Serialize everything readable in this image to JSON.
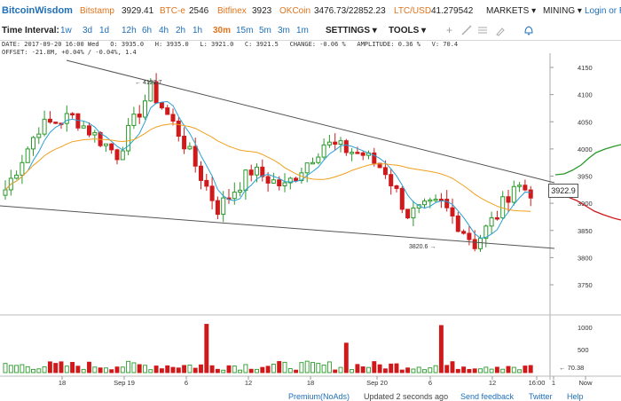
{
  "topbar": {
    "logo": "BitcoinWisdom",
    "tickers": [
      {
        "exchange": "Bitstamp",
        "value": "3929.41"
      },
      {
        "exchange": "BTC-e",
        "value": "2546"
      },
      {
        "exchange": "Bitfinex",
        "value": "3923"
      },
      {
        "exchange": "OKCoin",
        "value": "3476.73/22852.23"
      },
      {
        "exchange": "LTC/USD",
        "value": "41.279542"
      }
    ],
    "markets_label": "MARKETS ▾",
    "mining_label": "MINING ▾",
    "login_label": "Login or R"
  },
  "toolbar": {
    "time_interval_label": "Time Interval:",
    "intervals": [
      "1w",
      "3d",
      "1d",
      "12h",
      "6h",
      "4h",
      "2h",
      "1h",
      "30m",
      "15m",
      "5m",
      "3m",
      "1m"
    ],
    "active_interval": "30m",
    "settings_label": "SETTINGS ▾",
    "tools_label": "TOOLS ▾",
    "icons": [
      "plus-icon",
      "line-icon",
      "hlines-icon",
      "brush-icon",
      "bell-icon"
    ]
  },
  "info": {
    "line1": "DATE: 2017-09-20 16:00 Wed   O: 3935.0   H: 3935.0   L: 3921.0   C: 3921.5   CHANGE: -0.06 %   AMPLITUDE: 0.36 %   V: 70.4",
    "line2": "OFFSET: -21.8M, +0.04% / -0.04%, 1.4"
  },
  "chart_data": {
    "type": "candlestick",
    "ylim": [
      3720,
      4170
    ],
    "yticks": [
      3750,
      3800,
      3850,
      3900,
      3950,
      4000,
      4050,
      4100,
      4150
    ],
    "xtick_labels": [
      "18",
      "Sep 19",
      "6",
      "12",
      "18",
      "Sep 20",
      "6",
      "12",
      "16:00",
      "1",
      "Now"
    ],
    "annotations": [
      {
        "text": "← 4122.7"
      },
      {
        "text": "3820.6 →"
      }
    ],
    "current_price": "3922.9",
    "volume_ticks": [
      "1000",
      "500"
    ],
    "last_volume": "← 70.38",
    "colors": {
      "up": "#2a9a2a",
      "down": "#d0191b",
      "ma_fast": "#2aa0d4",
      "ma_slow": "#f0a01e",
      "trend": "#555555",
      "bid": "#d0191b",
      "ask": "#2a9a2a"
    }
  },
  "footer": {
    "premium": "Premium(NoAds)",
    "updated": "Updated 2 seconds ago",
    "feedback": "Send feedback",
    "twitter": "Twitter",
    "help": "Help"
  }
}
